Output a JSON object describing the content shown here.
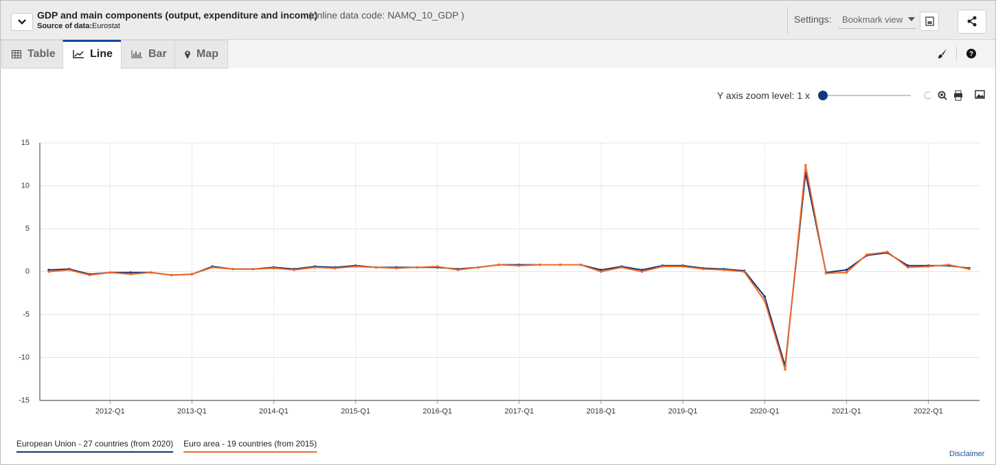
{
  "header": {
    "title": "GDP and main components (output, expenditure and income)",
    "code": "(online data code: NAMQ_10_GDP )",
    "source_label": "Source of data:",
    "source": "Eurostat",
    "settings_label": "Settings:",
    "settings_value": "Bookmark view"
  },
  "tabs": [
    "Table",
    "Line",
    "Bar",
    "Map"
  ],
  "zoom_label": "Y axis zoom level: 1 x",
  "disclaimer": "Disclaimer",
  "chart_data": {
    "type": "line",
    "categories": [
      null,
      null,
      null,
      "2012-Q1",
      null,
      null,
      null,
      "2013-Q1",
      null,
      null,
      null,
      "2014-Q1",
      null,
      null,
      null,
      "2015-Q1",
      null,
      null,
      null,
      "2016-Q1",
      null,
      null,
      null,
      "2017-Q1",
      null,
      null,
      null,
      "2018-Q1",
      null,
      null,
      null,
      "2019-Q1",
      null,
      null,
      null,
      "2020-Q1",
      null,
      null,
      null,
      "2021-Q1",
      null,
      null,
      null,
      "2022-Q1",
      null,
      null
    ],
    "series": [
      {
        "name": "European Union - 27 countries (from 2020)",
        "color": "#17336f",
        "values": [
          0.2,
          0.3,
          -0.3,
          -0.1,
          -0.1,
          -0.1,
          -0.4,
          -0.3,
          0.6,
          0.3,
          0.3,
          0.5,
          0.3,
          0.6,
          0.5,
          0.7,
          0.5,
          0.5,
          0.5,
          0.5,
          0.3,
          0.5,
          0.8,
          0.8,
          0.8,
          0.8,
          0.8,
          0.2,
          0.6,
          0.2,
          0.7,
          0.7,
          0.4,
          0.3,
          0.1,
          -2.9,
          -11.0,
          11.5,
          -0.1,
          0.2,
          1.9,
          2.2,
          0.7,
          0.7,
          0.7,
          0.4
        ]
      },
      {
        "name": "Euro area - 19 countries (from 2015)",
        "color": "#f06a28",
        "values": [
          0.0,
          0.2,
          -0.4,
          -0.1,
          -0.3,
          -0.1,
          -0.4,
          -0.3,
          0.5,
          0.3,
          0.3,
          0.4,
          0.2,
          0.5,
          0.4,
          0.6,
          0.5,
          0.4,
          0.5,
          0.6,
          0.2,
          0.5,
          0.8,
          0.7,
          0.8,
          0.8,
          0.8,
          0.0,
          0.5,
          0.0,
          0.6,
          0.6,
          0.3,
          0.2,
          0.0,
          -3.4,
          -11.4,
          12.4,
          -0.2,
          -0.1,
          2.0,
          2.3,
          0.5,
          0.6,
          0.8,
          0.3
        ]
      }
    ],
    "ylim": [
      -15,
      15
    ],
    "yticks": [
      -15,
      -10,
      -5,
      0,
      5,
      10,
      15
    ],
    "grid": true
  }
}
